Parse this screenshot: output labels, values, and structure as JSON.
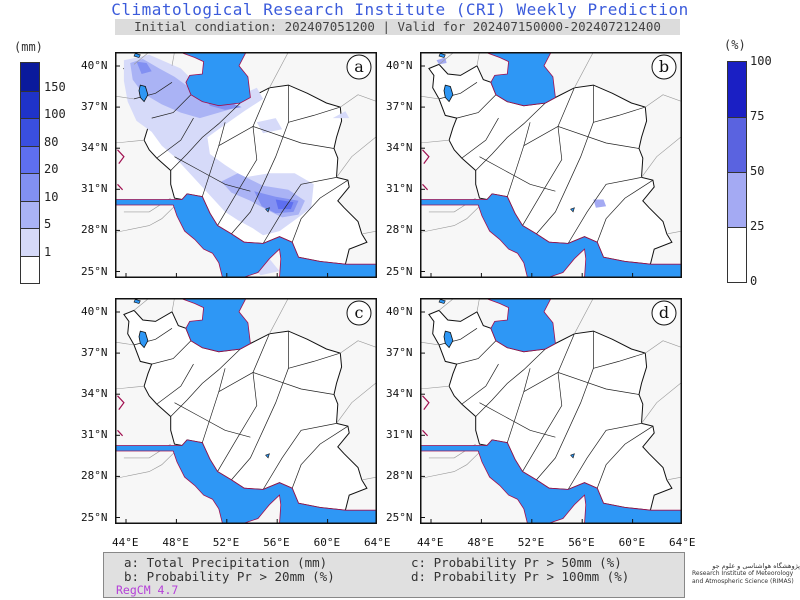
{
  "title": "Climatological Research Institute (CRI) Weekly Prediction",
  "subtitle": "Initial condiation: 202407051200 | Valid for 202407150000-202407212400",
  "left_colorbar": {
    "unit": "(mm)",
    "levels": [
      "150",
      "100",
      "80",
      "20",
      "10",
      "5",
      "1"
    ],
    "colors": [
      "#0a1a9c",
      "#1f33c9",
      "#3a4fe0",
      "#5e6ff0",
      "#8290f2",
      "#aab3f5",
      "#d6daf9",
      "#ffffff"
    ]
  },
  "right_colorbar": {
    "unit": "(%)",
    "levels": [
      "100",
      "75",
      "50",
      "25",
      "0"
    ],
    "colors": [
      "#1a1fc4",
      "#5a63e0",
      "#a4aaf3",
      "#ffffff"
    ]
  },
  "panels": [
    {
      "letter": "a"
    },
    {
      "letter": "b"
    },
    {
      "letter": "c"
    },
    {
      "letter": "d"
    }
  ],
  "lat_labels": [
    "40°N",
    "37°N",
    "34°N",
    "31°N",
    "28°N",
    "25°N"
  ],
  "lon_labels": [
    "44°E",
    "48°E",
    "52°E",
    "56°E",
    "60°E",
    "64°E"
  ],
  "colors": {
    "water": "#2e97f5",
    "coast": "#a01050",
    "border": "#111111",
    "title": "#3b5bdb"
  },
  "legend": {
    "a": "a: Total Precipitation (mm)",
    "b": "b: Probability Pr > 20mm (%)",
    "c": "c: Probability Pr > 50mm (%)",
    "d": "d: Probability Pr > 100mm (%)",
    "model": "RegCM 4.7"
  },
  "logo": {
    "line1": "پژوهشگاه هواشناسی و علوم جو",
    "line2": "Research Institute of Meteorology",
    "line3": "and Atmospheric Science (RIMAS)"
  }
}
